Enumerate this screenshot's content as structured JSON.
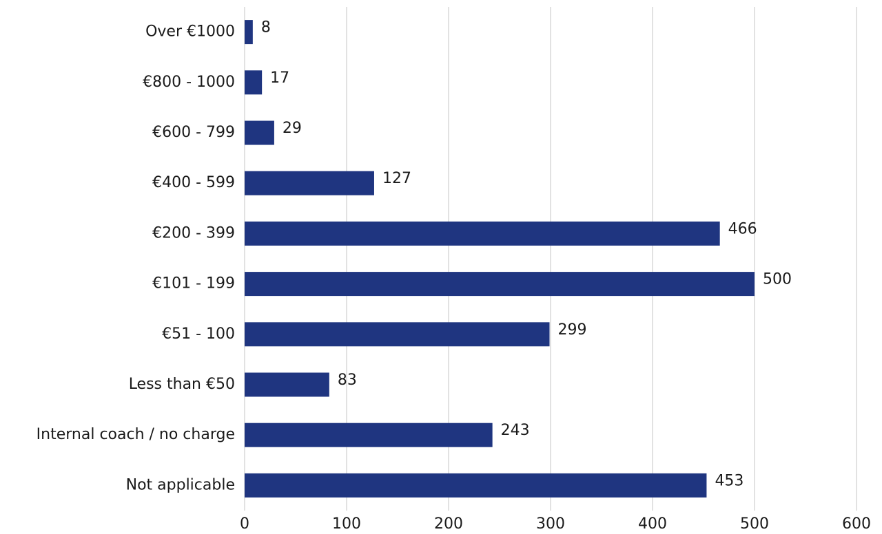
{
  "chart_data": {
    "type": "bar",
    "orientation": "horizontal",
    "categories": [
      "Over €1000",
      "€800 - 1000",
      "€600 - 799",
      "€400 - 599",
      "€200 - 399",
      "€101 - 199",
      "€51 - 100",
      "Less than €50",
      "Internal coach / no charge",
      "Not applicable"
    ],
    "values": [
      8,
      17,
      29,
      127,
      466,
      500,
      299,
      83,
      243,
      453
    ],
    "color": "#1f3580",
    "xlim": [
      0,
      600
    ],
    "xticks": [
      0,
      100,
      200,
      300,
      400,
      500,
      600
    ],
    "grid": true
  }
}
